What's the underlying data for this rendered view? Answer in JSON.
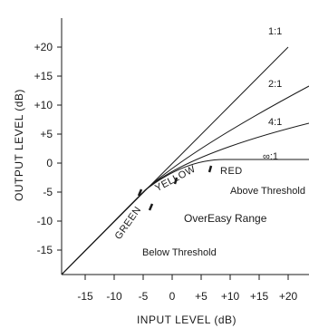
{
  "axes": {
    "x_title": "INPUT LEVEL (dB)",
    "y_title": "OUTPUT LEVEL (dB)",
    "x_ticks": [
      "-15",
      "-10",
      "-5",
      "0",
      "+5",
      "+10",
      "+15",
      "+20"
    ],
    "y_ticks": [
      "+20",
      "+15",
      "+10",
      "+5",
      "0",
      "-5",
      "-10",
      "-15"
    ]
  },
  "ratios": {
    "r1": "1:1",
    "r2": "2:1",
    "r4": "4:1",
    "rinf": "∞:1"
  },
  "zones": {
    "green": "GREEN",
    "yellow": "YELLOW",
    "red": "RED"
  },
  "regions": {
    "above": "Above Threshold",
    "overeasy": "OverEasy Range",
    "below": "Below Threshold"
  },
  "colors": {
    "line": "#1a1a1a",
    "background": "#ffffff"
  }
}
